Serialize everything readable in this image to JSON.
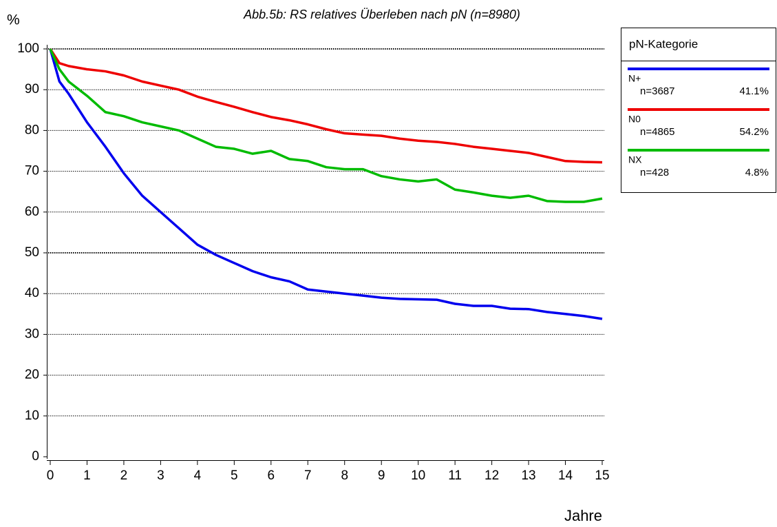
{
  "chart_data": {
    "type": "line",
    "title": "Abb.5b: RS relatives Überleben nach pN (n=8980)",
    "y_label": "%",
    "x_label": "Jahre",
    "legend_title": "pN-Kategorie",
    "x": [
      0,
      0.25,
      0.5,
      1,
      1.5,
      2,
      2.5,
      3,
      3.5,
      4,
      4.5,
      5,
      5.5,
      6,
      6.5,
      7,
      7.5,
      8,
      8.5,
      9,
      9.5,
      10,
      10.5,
      11,
      11.5,
      12,
      12.5,
      13,
      13.5,
      14,
      14.5,
      15
    ],
    "series": [
      {
        "name": "N+",
        "count": "n=3687",
        "share": "41.1%",
        "color": "#0000ee",
        "values": [
          100,
          92,
          89,
          82,
          76,
          69.5,
          64,
          60,
          56,
          52,
          49.5,
          47.5,
          45.5,
          44,
          43,
          41,
          40.5,
          40,
          39.5,
          39,
          38.7,
          38.6,
          38.5,
          37.5,
          37,
          37,
          36.3,
          36.2,
          35.5,
          35,
          34.5,
          33.8
        ]
      },
      {
        "name": "N0",
        "count": "n=4865",
        "share": "54.2%",
        "color": "#ee0000",
        "values": [
          100,
          96.5,
          95.8,
          95,
          94.5,
          93.5,
          92,
          91,
          90,
          88.3,
          87,
          85.8,
          84.5,
          83.3,
          82.5,
          81.5,
          80.3,
          79.3,
          79,
          78.7,
          78,
          77.5,
          77.2,
          76.7,
          76,
          75.5,
          75,
          74.5,
          73.5,
          72.5,
          72.3,
          72.2
        ]
      },
      {
        "name": "NX",
        "count": "n=428",
        "share": "4.8%",
        "color": "#00bb00",
        "values": [
          100,
          95,
          92,
          88.5,
          84.5,
          83.5,
          82,
          81,
          80,
          78,
          76,
          75.5,
          74.3,
          75,
          73,
          72.5,
          71,
          70.5,
          70.5,
          68.8,
          68,
          67.5,
          68,
          65.5,
          64.8,
          64,
          63.5,
          64,
          62.7,
          62.5,
          62.5,
          63.3
        ]
      }
    ],
    "xlim": [
      0,
      15
    ],
    "xticks": [
      0,
      1,
      2,
      3,
      4,
      5,
      6,
      7,
      8,
      9,
      10,
      11,
      12,
      13,
      14,
      15
    ],
    "ylim": [
      0,
      100
    ],
    "yticks": [
      0,
      10,
      20,
      30,
      40,
      50,
      60,
      70,
      80,
      90,
      100
    ],
    "grid": true
  }
}
